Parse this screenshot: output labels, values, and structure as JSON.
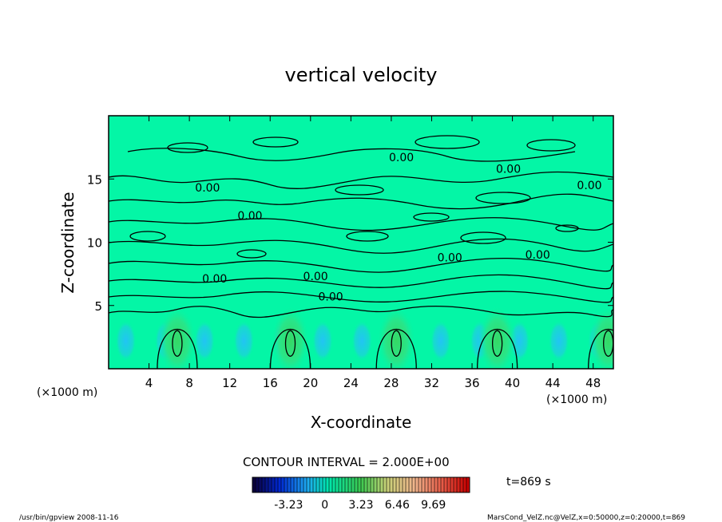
{
  "chart_data": {
    "type": "heatmap",
    "title": "vertical velocity",
    "xlabel": "X-coordinate",
    "ylabel": "Z-coordinate",
    "x_unit_left": "(×1000 m)",
    "x_unit_right": "(×1000 m)",
    "xlim": [
      0,
      50
    ],
    "ylim": [
      0,
      20
    ],
    "x_ticks": [
      "4",
      "8",
      "12",
      "16",
      "20",
      "24",
      "28",
      "32",
      "36",
      "40",
      "44",
      "48"
    ],
    "y_ticks": [
      "5",
      "10",
      "15"
    ],
    "contour_labels": [
      "0.00",
      "0.00",
      "0.00",
      "0.00",
      "0.00",
      "0.00",
      "0.00",
      "0.00",
      "0.00",
      "0.00"
    ],
    "contour_interval_text": "CONTOUR INTERVAL = 2.000E+00",
    "colorbar_ticks": [
      "-3.23",
      "0",
      "3.23",
      "6.46",
      "9.69"
    ],
    "colorbar_range": [
      -6.46,
      12.92
    ],
    "time_label": "t=869 s",
    "updrafts_x": [
      6.8,
      18,
      28.5,
      38.5,
      49.5
    ],
    "grid": false,
    "legend": "colorbar-bottom"
  },
  "footer": {
    "left": "/usr/bin/gpview  2008-11-16",
    "right": "MarsCond_VelZ.nc@VelZ,x=0:50000,z=0:20000,t=869"
  },
  "colors": {
    "background_field": "#04f6a6",
    "updraft": "#3fd870",
    "downdraft": "#20c8f0",
    "contour": "#000000"
  }
}
